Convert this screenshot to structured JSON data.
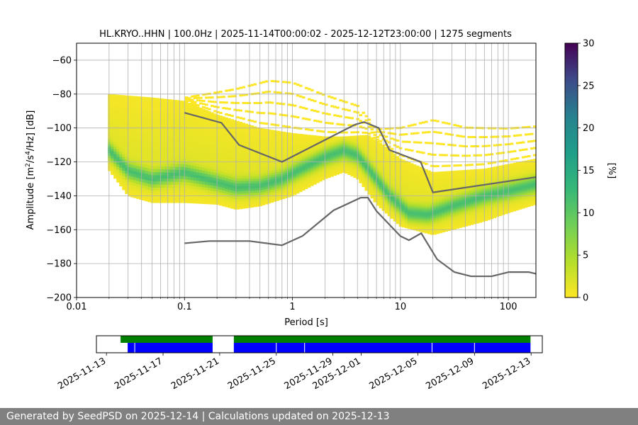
{
  "chart_data": {
    "type": "heatmap",
    "title": "HL.KRYO..HHN | 100.0Hz | 2025-11-14T00:00:02 - 2025-12-12T23:00:00 | 1275 segments",
    "xlabel": "Period [s]",
    "ylabel": "Amplitude [m²/s⁴/Hz] [dB]",
    "xscale": "log",
    "xlim": [
      0.01,
      180
    ],
    "ylim": [
      -200,
      -50
    ],
    "xticks": [
      {
        "value": 0.01,
        "label": "0.01"
      },
      {
        "value": 0.1,
        "label": "0.1"
      },
      {
        "value": 1,
        "label": "1"
      },
      {
        "value": 10,
        "label": "10"
      },
      {
        "value": 100,
        "label": "100"
      }
    ],
    "yticks": [
      {
        "value": -60,
        "label": "−60"
      },
      {
        "value": -80,
        "label": "−80"
      },
      {
        "value": -100,
        "label": "−100"
      },
      {
        "value": -120,
        "label": "−120"
      },
      {
        "value": -140,
        "label": "−140"
      },
      {
        "value": -160,
        "label": "−160"
      },
      {
        "value": -180,
        "label": "−180"
      },
      {
        "value": -200,
        "label": "−200"
      }
    ],
    "grid": true,
    "density_center": [
      [
        0.02,
        -113
      ],
      [
        0.03,
        -125
      ],
      [
        0.05,
        -130
      ],
      [
        0.1,
        -126
      ],
      [
        0.2,
        -132
      ],
      [
        0.3,
        -135
      ],
      [
        0.5,
        -134
      ],
      [
        0.8,
        -130
      ],
      [
        1.2,
        -124
      ],
      [
        2,
        -117
      ],
      [
        3,
        -113
      ],
      [
        4,
        -116
      ],
      [
        6,
        -130
      ],
      [
        8,
        -140
      ],
      [
        12,
        -150
      ],
      [
        18,
        -151
      ],
      [
        30,
        -146
      ],
      [
        60,
        -140
      ],
      [
        100,
        -137
      ],
      [
        180,
        -133
      ]
    ],
    "density_upper": [
      [
        0.02,
        -80
      ],
      [
        0.05,
        -82
      ],
      [
        0.1,
        -84
      ],
      [
        0.2,
        -92
      ],
      [
        0.5,
        -100
      ],
      [
        1,
        -103
      ],
      [
        2,
        -105
      ],
      [
        3,
        -105
      ],
      [
        5,
        -104
      ],
      [
        7,
        -110
      ],
      [
        10,
        -118
      ],
      [
        20,
        -126
      ],
      [
        60,
        -124
      ],
      [
        180,
        -118
      ]
    ],
    "density_lower": [
      [
        0.02,
        -125
      ],
      [
        0.03,
        -140
      ],
      [
        0.05,
        -144
      ],
      [
        0.1,
        -144
      ],
      [
        0.2,
        -145
      ],
      [
        0.3,
        -148
      ],
      [
        0.5,
        -146
      ],
      [
        1,
        -140
      ],
      [
        2,
        -130
      ],
      [
        3,
        -126
      ],
      [
        4,
        -130
      ],
      [
        6,
        -145
      ],
      [
        10,
        -158
      ],
      [
        20,
        -163
      ],
      [
        30,
        -160
      ],
      [
        60,
        -155
      ],
      [
        100,
        -150
      ],
      [
        180,
        -145
      ]
    ],
    "sparse_upper": [
      [
        0.02,
        -80
      ],
      [
        0.05,
        -80
      ],
      [
        0.1,
        -82
      ],
      [
        0.3,
        -75
      ],
      [
        0.6,
        -69
      ],
      [
        1,
        -70
      ],
      [
        2,
        -78
      ],
      [
        4,
        -85
      ],
      [
        6,
        -100
      ],
      [
        10,
        -98
      ],
      [
        20,
        -92
      ],
      [
        40,
        -97
      ],
      [
        100,
        -98
      ],
      [
        180,
        -97
      ]
    ],
    "nhnm": [
      [
        0.1,
        -91
      ],
      [
        0.22,
        -97
      ],
      [
        0.32,
        -110
      ],
      [
        0.8,
        -120
      ],
      [
        3.8,
        -98
      ],
      [
        4.6,
        -96.5
      ],
      [
        6.3,
        -100
      ],
      [
        7.9,
        -113
      ],
      [
        15.4,
        -120
      ],
      [
        20,
        -138
      ],
      [
        180,
        -129
      ]
    ],
    "nlnm": [
      [
        0.1,
        -168
      ],
      [
        0.17,
        -166.7
      ],
      [
        0.4,
        -166.7
      ],
      [
        0.8,
        -169.2
      ],
      [
        1.24,
        -163.7
      ],
      [
        2.4,
        -148.6
      ],
      [
        4.3,
        -141.1
      ],
      [
        5,
        -141.1
      ],
      [
        6,
        -149
      ],
      [
        10,
        -163.8
      ],
      [
        12,
        -166.2
      ],
      [
        15.6,
        -162.1
      ],
      [
        21.9,
        -177.5
      ],
      [
        31.6,
        -185
      ],
      [
        45,
        -187.5
      ],
      [
        70,
        -187.5
      ],
      [
        101,
        -185
      ],
      [
        154,
        -185
      ],
      [
        180,
        -186
      ]
    ],
    "colorbar": {
      "label": "[%]",
      "min": 0,
      "max": 30,
      "ticks": [
        {
          "value": 0,
          "label": "0"
        },
        {
          "value": 5,
          "label": "5"
        },
        {
          "value": 10,
          "label": "10"
        },
        {
          "value": 15,
          "label": "15"
        },
        {
          "value": 20,
          "label": "20"
        },
        {
          "value": 25,
          "label": "25"
        },
        {
          "value": 30,
          "label": "30"
        }
      ]
    },
    "availability": {
      "range": [
        "2025-11-12T07:00",
        "2025-12-13T19:00"
      ],
      "green_segments": [
        [
          "2025-11-14T00:00",
          "2025-11-20T12:00"
        ],
        [
          "2025-11-22T00:00",
          "2025-12-12T23:00"
        ]
      ],
      "blue_segments": [
        [
          "2025-11-14T12:00",
          "2025-11-20T12:00"
        ],
        [
          "2025-11-22T00:00",
          "2025-12-12T23:00"
        ]
      ],
      "gaps": [
        "2025-11-15T00:00",
        "2025-11-25T00:00",
        "2025-11-27T00:00",
        "2025-12-06T00:00",
        "2025-12-09T00:00"
      ],
      "ticks": [
        {
          "date": "2025-11-13",
          "label": "2025-11-13"
        },
        {
          "date": "2025-11-17",
          "label": "2025-11-17"
        },
        {
          "date": "2025-11-21",
          "label": "2025-11-21"
        },
        {
          "date": "2025-11-25",
          "label": "2025-11-25"
        },
        {
          "date": "2025-11-29",
          "label": "2025-11-29"
        },
        {
          "date": "2025-12-01",
          "label": "2025-12-01"
        },
        {
          "date": "2025-12-05",
          "label": "2025-12-05"
        },
        {
          "date": "2025-12-09",
          "label": "2025-12-09"
        },
        {
          "date": "2025-12-13",
          "label": "2025-12-13"
        }
      ]
    }
  },
  "footer": {
    "text": "Generated by SeedPSD on 2025-12-14 | Calculations updated on 2025-12-13"
  }
}
